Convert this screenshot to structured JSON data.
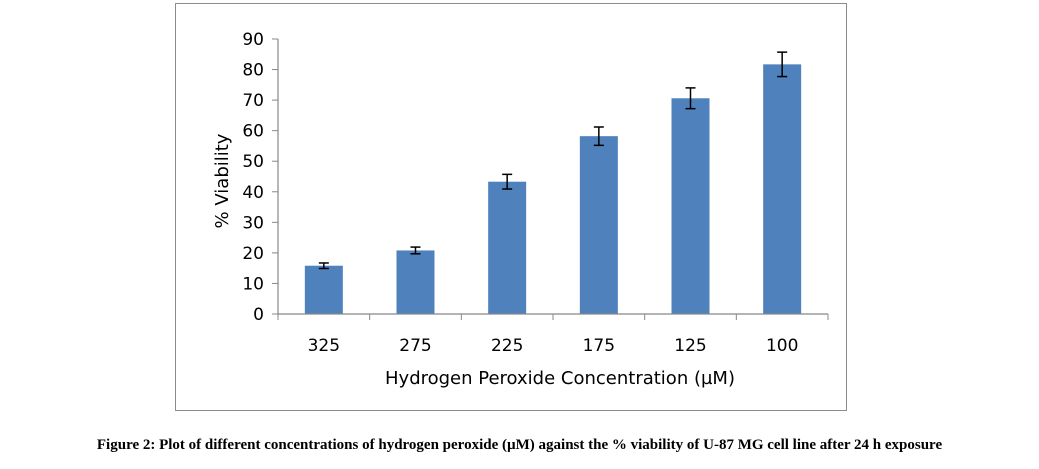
{
  "chart_data": {
    "type": "bar",
    "categories": [
      "325",
      "275",
      "225",
      "175",
      "125",
      "100"
    ],
    "values": [
      15.8,
      20.8,
      43.3,
      58.2,
      70.6,
      81.7
    ],
    "error": [
      0.9,
      1.1,
      2.4,
      3.0,
      3.4,
      4.0
    ],
    "title": "",
    "xlabel": "Hydrogen Peroxide Concentration (µM)",
    "ylabel": "% Viability",
    "ylim": [
      0,
      90
    ],
    "yticks": [
      0,
      10,
      20,
      30,
      40,
      50,
      60,
      70,
      80,
      90
    ],
    "grid": false,
    "legend": "none",
    "bar_color": "#4f81bd"
  },
  "caption": "Figure 2: Plot of different concentrations of hydrogen peroxide (µM) against the % viability of U-87 MG cell line after 24 h exposure"
}
